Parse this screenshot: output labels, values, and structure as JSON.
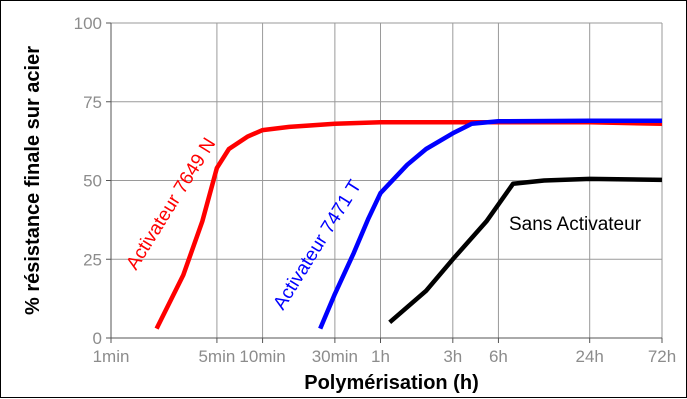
{
  "chart_data": {
    "type": "line",
    "xlabel": "Polymérisation (h)",
    "ylabel": "% résistance finale sur acier",
    "x_scale": "log",
    "ylim": [
      0,
      100
    ],
    "grid": true,
    "x_ticks": [
      {
        "label": "1min",
        "hours": 0.01667
      },
      {
        "label": "5min",
        "hours": 0.0833
      },
      {
        "label": "10min",
        "hours": 0.1667
      },
      {
        "label": "30min",
        "hours": 0.5
      },
      {
        "label": "1h",
        "hours": 1
      },
      {
        "label": "3h",
        "hours": 3
      },
      {
        "label": "6h",
        "hours": 6
      },
      {
        "label": "24h",
        "hours": 24
      },
      {
        "label": "72h",
        "hours": 72
      }
    ],
    "y_ticks": [
      0,
      25,
      50,
      75,
      100
    ],
    "series": [
      {
        "name": "Activateur 7649 N",
        "color": "#ff0000",
        "points": [
          [
            0.0333,
            3
          ],
          [
            0.05,
            20
          ],
          [
            0.0667,
            37
          ],
          [
            0.0833,
            54
          ],
          [
            0.1,
            60
          ],
          [
            0.1333,
            64
          ],
          [
            0.1667,
            66
          ],
          [
            0.25,
            67
          ],
          [
            0.5,
            68
          ],
          [
            1,
            68.5
          ],
          [
            3,
            68.5
          ],
          [
            6,
            68.5
          ],
          [
            24,
            68.5
          ],
          [
            72,
            68
          ]
        ]
      },
      {
        "name": "Activateur 7471 T",
        "color": "#0000ff",
        "points": [
          [
            0.4,
            3
          ],
          [
            0.5,
            14
          ],
          [
            0.6667,
            27
          ],
          [
            0.8333,
            38
          ],
          [
            1,
            46
          ],
          [
            1.5,
            55
          ],
          [
            2,
            60
          ],
          [
            3,
            65
          ],
          [
            4,
            68
          ],
          [
            6,
            68.8
          ],
          [
            24,
            69
          ],
          [
            72,
            69
          ]
        ]
      },
      {
        "name": "Sans Activateur",
        "color": "#000000",
        "points": [
          [
            1.15,
            5
          ],
          [
            2,
            15
          ],
          [
            3,
            25
          ],
          [
            5,
            37
          ],
          [
            7.5,
            49
          ],
          [
            12,
            50
          ],
          [
            24,
            50.5
          ],
          [
            72,
            50.2
          ]
        ]
      }
    ]
  }
}
